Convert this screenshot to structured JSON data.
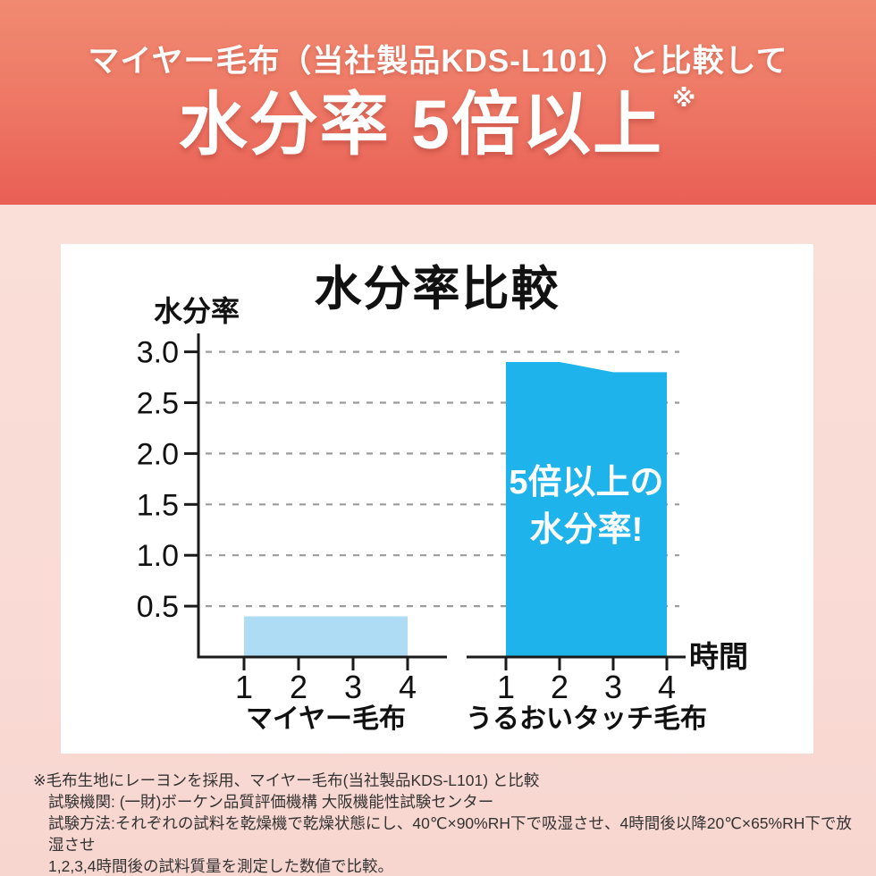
{
  "header": {
    "line1": "マイヤー毛布（当社製品KDS-L101）と比較して",
    "line2": "水分率 5倍以上",
    "note_mark": "※"
  },
  "chart": {
    "title": "水分率比較",
    "y_axis_label": "水分率",
    "x_axis_unit": "時間",
    "annotation": {
      "line1": "5倍以上の",
      "line2": "水分率!"
    }
  },
  "chart_data": {
    "type": "area",
    "title": "水分率比較",
    "ylabel": "水分率",
    "xlabel": "時間",
    "x": [
      1,
      2,
      3,
      4
    ],
    "x_tick_labels": [
      "1",
      "2",
      "3",
      "4"
    ],
    "y_ticks": [
      0.5,
      1.0,
      1.5,
      2.0,
      2.5,
      3.0
    ],
    "ylim": [
      0,
      3.2
    ],
    "grid": "horizontal-dashed",
    "legend_position": "below-each-axis-group",
    "series": [
      {
        "name": "マイヤー毛布",
        "values": [
          0.4,
          0.4,
          0.4,
          0.4
        ],
        "color": "#AEDCF5"
      },
      {
        "name": "うるおいタッチ毛布",
        "values": [
          2.9,
          2.9,
          2.8,
          2.8
        ],
        "color": "#1FB3EB"
      }
    ]
  },
  "footnotes": [
    "※毛布生地にレーヨンを採用、マイヤー毛布(当社製品KDS-L101) と比較",
    "試験機関: (一財)ボーケン品質評価機構 大阪機能性試験センター",
    "試験方法:それぞれの試料を乾燥機で乾燥状態にし、40℃×90%RH下で吸湿させ、4時間後以降20℃×65%RH下で放湿させ",
    "1,2,3,4時間後の試料質量を測定した数値で比較。"
  ],
  "colors": {
    "header_gradient_top": "#F08A71",
    "header_gradient_bottom": "#E95F55",
    "page_bg_top": "#FBDFD9",
    "page_bg_bottom": "#F8D6D0",
    "panel_bg": "#FFFFFF",
    "series_light_blue": "#AEDCF5",
    "series_cyan": "#1FB3EB",
    "axis": "#1A1A1A",
    "grid": "#9B9B9B",
    "text": "#111111",
    "footnote_text": "#333333",
    "annotation_text": "#FFFFFF"
  }
}
